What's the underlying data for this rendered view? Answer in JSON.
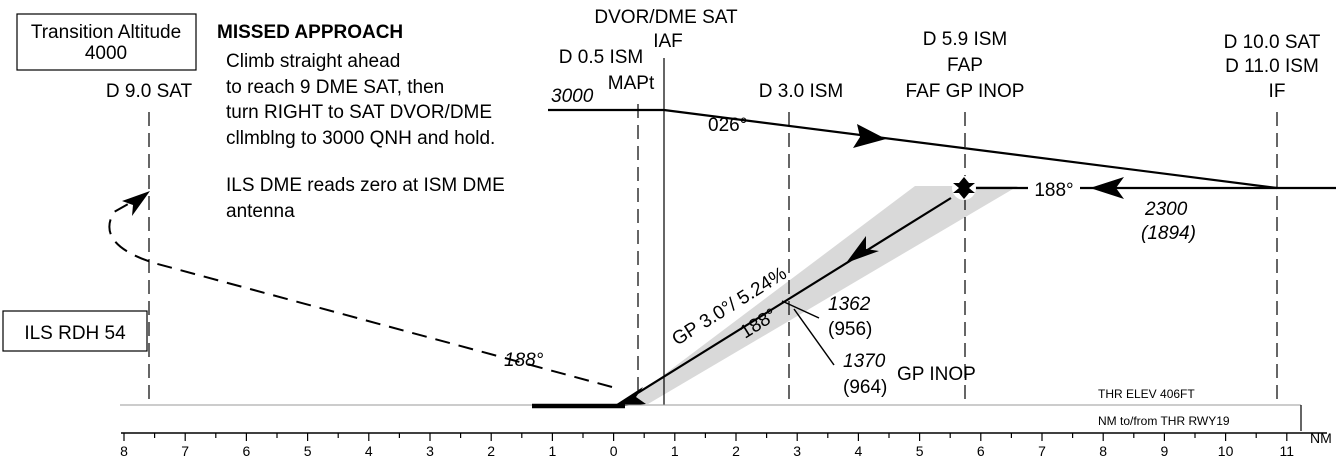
{
  "transition_box": {
    "line1": "Transition Altitude",
    "line2": "4000"
  },
  "rdh_box": "ILS RDH 54",
  "missed_approach": {
    "title": "MISSED APPROACH",
    "lines": [
      "Climb straight ahead",
      "to reach 9 DME SAT, then",
      "turn RIGHT to SAT DVOR/DME",
      "cllmblng to 3000 QNH and hold."
    ],
    "note_lines": [
      "ILS DME reads zero at ISM DME",
      "antenna"
    ]
  },
  "fixes": {
    "d9sat": "D 9.0 SAT",
    "mapt": [
      "D 0.5 ISM",
      "MAPt"
    ],
    "iaf": [
      "DVOR/DME SAT",
      "IAF"
    ],
    "d3ism": "D 3.0 ISM",
    "fap": [
      "D 5.9 ISM",
      "FAP",
      "FAF GP INOP"
    ],
    "if": [
      "D 10.0 SAT",
      "D 11.0 ISM",
      "IF"
    ]
  },
  "profile": {
    "alt_3000": "3000",
    "track_026": "026°",
    "track_188_top": "188°",
    "alt_2300": "2300",
    "alt_2300_hat": "(1894)",
    "gp": "GP 3.0°/ 5.24%",
    "track_188_gp": "188°",
    "alt_1362": "1362",
    "alt_1362_hat": "(956)",
    "alt_1370": "1370",
    "alt_1370_hat": "(964)",
    "gp_inop": "GP INOP",
    "missed_track": "188°"
  },
  "axis": {
    "thr_elev": "THR ELEV 406FT",
    "nm_label": "NM to/from THR RWY19",
    "unit": "NM",
    "ticks": [
      "8",
      "7",
      "6",
      "5",
      "4",
      "3",
      "2",
      "1",
      "0",
      "1",
      "2",
      "3",
      "4",
      "5",
      "6",
      "7",
      "8",
      "9",
      "10",
      "11"
    ]
  }
}
